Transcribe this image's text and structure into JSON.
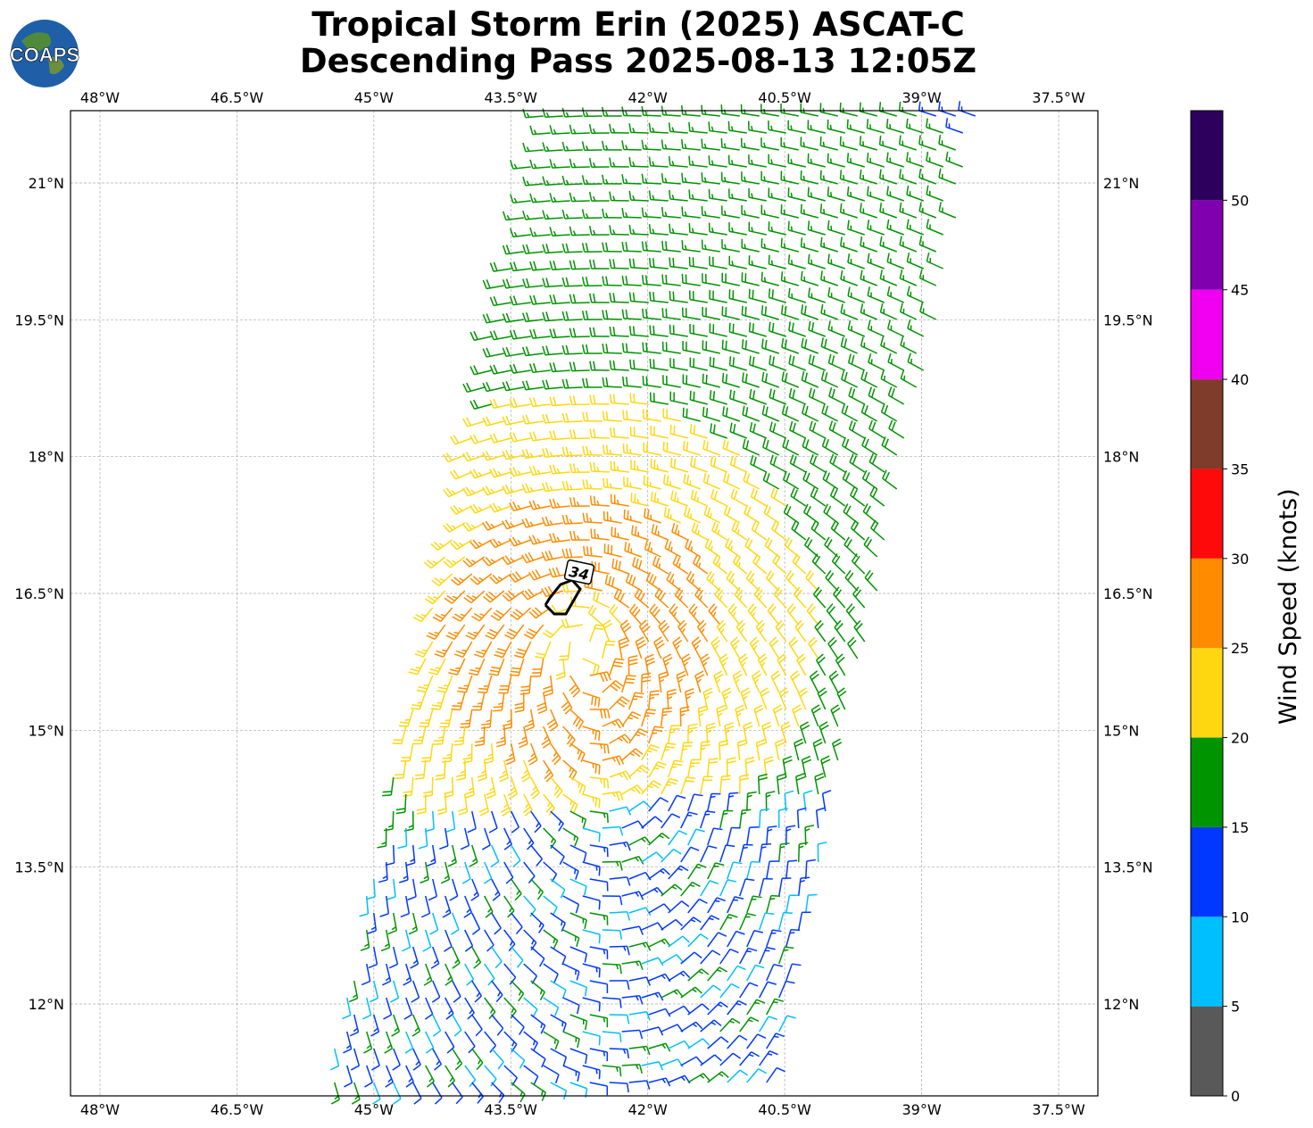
{
  "logo_text": "COAPS",
  "title_line1": "Tropical Storm Erin (2025) ASCAT-C",
  "title_line2": "Descending Pass 2025-08-13 12:05Z",
  "map": {
    "lon_ticks": [
      "48°W",
      "46.5°W",
      "45°W",
      "43.5°W",
      "42°W",
      "40.5°W",
      "39°W",
      "37.5°W"
    ],
    "lat_ticks": [
      "21°N",
      "19.5°N",
      "18°N",
      "16.5°N",
      "15°N",
      "13.5°N",
      "12°N"
    ],
    "lon_values": [
      -48,
      -46.5,
      -45,
      -43.5,
      -42,
      -40.5,
      -39,
      -37.5
    ],
    "lat_values": [
      21,
      19.5,
      18,
      16.5,
      15,
      13.5,
      12
    ],
    "grid": true,
    "storm_center_approx": {
      "lon": -42.7,
      "lat": 16.1
    },
    "wind_radius_label": "34"
  },
  "colorbar": {
    "label": "Wind Speed (knots)",
    "ticks": [
      "0",
      "5",
      "10",
      "15",
      "20",
      "25",
      "30",
      "35",
      "40",
      "45",
      "50"
    ],
    "bins": [
      {
        "from": 0,
        "to": 5,
        "color": "#595959"
      },
      {
        "from": 5,
        "to": 10,
        "color": "#00bfff"
      },
      {
        "from": 10,
        "to": 15,
        "color": "#0038ff"
      },
      {
        "from": 15,
        "to": 20,
        "color": "#009400"
      },
      {
        "from": 20,
        "to": 25,
        "color": "#ffd710"
      },
      {
        "from": 25,
        "to": 30,
        "color": "#ff8c00"
      },
      {
        "from": 30,
        "to": 35,
        "color": "#ff0a0a"
      },
      {
        "from": 35,
        "to": 40,
        "color": "#7f3c2a"
      },
      {
        "from": 40,
        "to": 45,
        "color": "#f000f0"
      },
      {
        "from": 45,
        "to": 50,
        "color": "#8000b0"
      },
      {
        "from": 50,
        "to": 55,
        "color": "#2e005e"
      }
    ]
  }
}
